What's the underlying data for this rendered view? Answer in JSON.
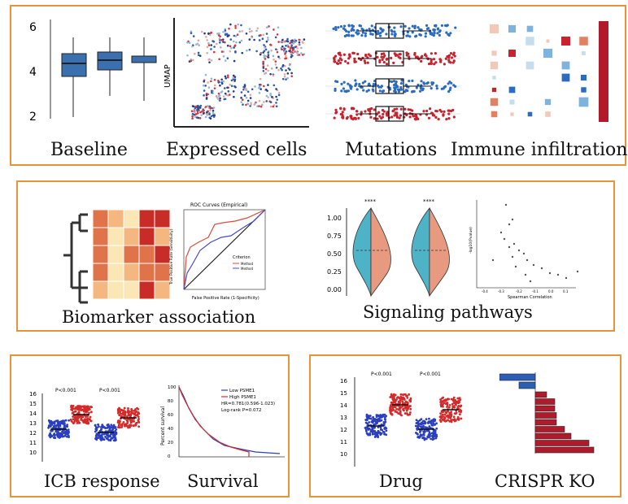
{
  "panels": {
    "p1": {
      "captions": [
        "Baseline",
        "Expressed cells",
        "Mutations",
        "Immune infiltration"
      ],
      "baseline_ticks": [
        "6",
        "4",
        "2"
      ],
      "umap_label": "UMAP"
    },
    "p2": {
      "captions": [
        "Biomarker association",
        "Signaling pathways"
      ],
      "roc_title": "ROC Curves (Empirical)",
      "roc_xlabel": "False Positive Rate (1-Specificity)",
      "roc_ylabel": "True Positive Rate (Sensitivity)",
      "roc_legend_title": "Criterion",
      "roc_legend": [
        "Method",
        "Method"
      ],
      "violin_sig": [
        "****",
        "****"
      ],
      "violin_ticks": [
        "1.00",
        "0.75",
        "0.50",
        "0.25",
        "0.00"
      ],
      "scatter_xlabel": "Spearman Correlation",
      "scatter_ylabel": "-log10(Pvalue)",
      "scatter_xticks": [
        "-0.4",
        "-0.3",
        "-0.2",
        "-0.1",
        "0.0",
        "0.1"
      ]
    },
    "p3": {
      "captions": [
        "ICB response",
        "Survival"
      ],
      "pvals": [
        "P<0.001",
        "P<0.001"
      ],
      "yticks": [
        "16",
        "15",
        "14",
        "13",
        "12",
        "11",
        "10"
      ],
      "survival_ylabel": "Percent survival",
      "survival_legend": [
        "Low PSME1",
        "High PSME1"
      ],
      "survival_stats": [
        "HR=0.781(0.596-1.023)",
        "Log-rank P=0.072"
      ],
      "survival_yticks": [
        "100",
        "80",
        "60",
        "40",
        "20",
        "0"
      ]
    },
    "p4": {
      "captions": [
        "Drug",
        "CRISPR KO"
      ],
      "pvals": [
        "P<0.001",
        "P<0.001"
      ],
      "yticks": [
        "16",
        "15",
        "14",
        "13",
        "12",
        "11",
        "10"
      ]
    }
  },
  "colors": {
    "border": "#e8943a",
    "blue": "#3a6fb0",
    "red": "#c8222e"
  }
}
